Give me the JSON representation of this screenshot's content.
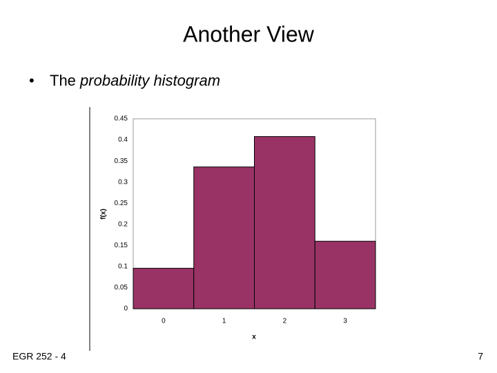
{
  "slide_title": "Another View",
  "bullet": {
    "plain": "The",
    "italic": "probability histogram"
  },
  "footer": "EGR 252 - 4",
  "page_number": "7",
  "chart_data": {
    "type": "bar",
    "categories": [
      "0",
      "1",
      "2",
      "3"
    ],
    "values": [
      0.096,
      0.336,
      0.408,
      0.16
    ],
    "color": "#993366",
    "x_label": "x",
    "y_label": "f(x)",
    "ylim": [
      0,
      0.45
    ],
    "yticks": [
      0,
      0.05,
      0.1,
      0.15,
      0.2,
      0.25,
      0.3,
      0.35,
      0.4,
      0.45
    ],
    "grid": false
  }
}
